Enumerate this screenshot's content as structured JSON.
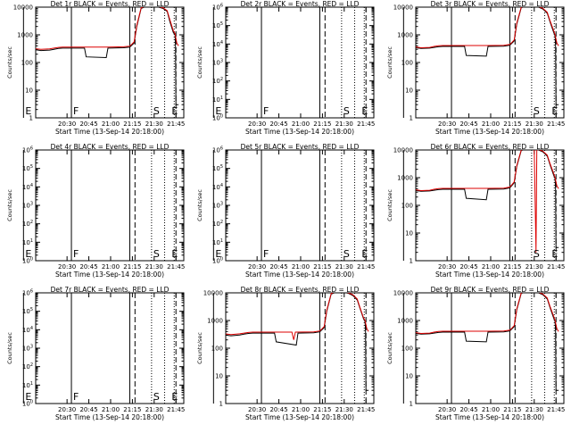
{
  "chart_data": [
    {
      "type": "line",
      "title": "Det 1r BLACK = Events, RED = LLD",
      "xlabel": "Start Time (13-Sep-14 20:18:00)",
      "ylabel": "Counts/sec",
      "scale": "log",
      "ylim": [
        1,
        10000
      ],
      "yticks": [
        "1",
        "10",
        "100",
        "1000",
        "10000"
      ],
      "xticks": [
        "20:30",
        "20:45",
        "21:00",
        "21:15",
        "21:30",
        "21:45"
      ],
      "letters": [
        {
          "t": "E",
          "x": 20.0
        },
        {
          "t": "F",
          "x": 20.55
        },
        {
          "t": "S",
          "x": 21.47
        },
        {
          "t": "E",
          "x": 21.68
        }
      ],
      "series": [
        {
          "color": "#000000",
          "x": [
            20.0,
            20.1,
            20.2,
            20.3,
            20.35,
            20.4,
            20.45,
            20.55,
            20.7,
            20.72,
            20.95,
            20.97,
            21.15,
            21.22,
            21.27,
            21.3,
            21.35,
            21.42,
            21.45,
            21.5,
            21.55,
            21.6,
            21.65,
            21.68,
            21.72,
            21.74,
            21.745,
            21.75,
            21.76,
            21.78
          ],
          "y": [
            310,
            300,
            270,
            280,
            300,
            320,
            330,
            330,
            330,
            160,
            150,
            330,
            340,
            360,
            500,
            2000,
            9000,
            11000,
            11000,
            11000,
            10000,
            9000,
            7000,
            3000,
            1200,
            1000,
            400,
            3,
            3,
            3
          ]
        },
        {
          "color": "#dd0000",
          "x": [
            20.0,
            20.1,
            20.2,
            20.3,
            20.35,
            20.4,
            20.45,
            20.55,
            20.7,
            20.95,
            21.15,
            21.22,
            21.27,
            21.3,
            21.35,
            21.42,
            21.45,
            21.5,
            21.55,
            21.6,
            21.65,
            21.68,
            21.72,
            21.74,
            21.76,
            21.78
          ],
          "y": [
            330,
            320,
            300,
            310,
            330,
            350,
            360,
            360,
            360,
            360,
            370,
            390,
            550,
            2200,
            9500,
            11500,
            11500,
            11500,
            10500,
            9500,
            7500,
            3500,
            1400,
            1100,
            500,
            400
          ]
        }
      ]
    },
    {
      "type": "line",
      "title": "Det 2r BLACK = Events, RED = LLD",
      "xlabel": "Start Time (13-Sep-14 20:18:00)",
      "ylabel": "Counts/sec",
      "scale": "log",
      "ylim": [
        1,
        1000000
      ],
      "yticks": [
        "10^0",
        "10^1",
        "10^2",
        "10^3",
        "10^4",
        "10^5",
        "10^6"
      ],
      "xticks": [
        "20:30",
        "20:45",
        "21:00",
        "21:15",
        "21:30",
        "21:45"
      ],
      "letters": [
        {
          "t": "E",
          "x": 20.0
        },
        {
          "t": "F",
          "x": 20.55
        },
        {
          "t": "S",
          "x": 21.47
        },
        {
          "t": "E",
          "x": 21.68
        }
      ],
      "series": []
    },
    {
      "type": "line",
      "title": "Det 3r BLACK = Events, RED = LLD",
      "xlabel": "Start Time (13-Sep-14 20:18:00)",
      "ylabel": "Counts/sec",
      "scale": "log",
      "ylim": [
        1,
        10000
      ],
      "yticks": [
        "1",
        "10",
        "100",
        "1000",
        "10000"
      ],
      "xticks": [
        "20:30",
        "20:45",
        "21:00",
        "21:15",
        "21:30",
        "21:45"
      ],
      "letters": [
        {
          "t": "S",
          "x": 21.47
        },
        {
          "t": "E",
          "x": 21.68
        }
      ],
      "series": [
        {
          "color": "#000000",
          "x": [
            20.0,
            20.1,
            20.2,
            20.3,
            20.35,
            20.4,
            20.45,
            20.55,
            20.7,
            20.72,
            20.95,
            20.97,
            21.15,
            21.22,
            21.27,
            21.3,
            21.35,
            21.42,
            21.45,
            21.5,
            21.55,
            21.6,
            21.65,
            21.68,
            21.72,
            21.74,
            21.745,
            21.75,
            21.76,
            21.78
          ],
          "y": [
            380,
            360,
            320,
            330,
            350,
            370,
            380,
            380,
            380,
            180,
            170,
            380,
            390,
            420,
            600,
            2500,
            9500,
            11500,
            11500,
            11000,
            10000,
            8500,
            6000,
            3000,
            1300,
            900,
            400,
            3,
            3,
            3
          ]
        },
        {
          "color": "#dd0000",
          "x": [
            20.0,
            20.1,
            20.2,
            20.3,
            20.35,
            20.4,
            20.45,
            20.55,
            20.7,
            20.95,
            21.15,
            21.22,
            21.27,
            21.3,
            21.35,
            21.42,
            21.45,
            21.5,
            21.55,
            21.6,
            21.65,
            21.68,
            21.72,
            21.74,
            21.76,
            21.78
          ],
          "y": [
            400,
            380,
            340,
            350,
            380,
            400,
            410,
            410,
            410,
            410,
            420,
            450,
            650,
            2700,
            10000,
            12000,
            12000,
            11500,
            10500,
            9000,
            6500,
            3300,
            1500,
            1000,
            500,
            400
          ]
        }
      ]
    },
    {
      "type": "line",
      "title": "Det 4r BLACK = Events, RED = LLD",
      "xlabel": "Start Time (13-Sep-14 20:18:00)",
      "ylabel": "Counts/sec",
      "scale": "log",
      "ylim": [
        1,
        1000000
      ],
      "yticks": [
        "10^0",
        "10^1",
        "10^2",
        "10^3",
        "10^4",
        "10^5",
        "10^6"
      ],
      "xticks": [
        "20:30",
        "20:45",
        "21:00",
        "21:15",
        "21:30",
        "21:45"
      ],
      "letters": [
        {
          "t": "E",
          "x": 20.0
        },
        {
          "t": "F",
          "x": 20.55
        },
        {
          "t": "S",
          "x": 21.47
        },
        {
          "t": "E",
          "x": 21.68
        }
      ],
      "series": []
    },
    {
      "type": "line",
      "title": "Det 5r BLACK = Events, RED = LLD",
      "xlabel": "Start Time (13-Sep-14 20:18:00)",
      "ylabel": "Counts/sec",
      "scale": "log",
      "ylim": [
        1,
        1000000
      ],
      "yticks": [
        "10^0",
        "10^1",
        "10^2",
        "10^3",
        "10^4",
        "10^5",
        "10^6"
      ],
      "xticks": [
        "20:30",
        "20:45",
        "21:00",
        "21:15",
        "21:30",
        "21:45"
      ],
      "letters": [
        {
          "t": "E",
          "x": 20.0
        },
        {
          "t": "F",
          "x": 20.55
        },
        {
          "t": "S",
          "x": 21.47
        },
        {
          "t": "E",
          "x": 21.68
        }
      ],
      "series": []
    },
    {
      "type": "line",
      "title": "Det 6r BLACK = Events, RED = LLD",
      "xlabel": "Start Time (13-Sep-14 20:18:00)",
      "ylabel": "Counts/sec",
      "scale": "log",
      "ylim": [
        1,
        10000
      ],
      "yticks": [
        "1",
        "10",
        "100",
        "1000",
        "10000"
      ],
      "xticks": [
        "20:30",
        "20:45",
        "21:00",
        "21:15",
        "21:30",
        "21:45"
      ],
      "letters": [
        {
          "t": "S",
          "x": 21.47
        },
        {
          "t": "E",
          "x": 21.68
        }
      ],
      "series": [
        {
          "color": "#000000",
          "x": [
            20.0,
            20.1,
            20.2,
            20.3,
            20.35,
            20.4,
            20.45,
            20.55,
            20.7,
            20.72,
            20.95,
            20.97,
            21.15,
            21.22,
            21.27,
            21.3,
            21.35,
            21.42,
            21.45,
            21.5,
            21.55,
            21.6,
            21.65,
            21.68,
            21.72,
            21.74,
            21.745,
            21.75,
            21.76,
            21.78
          ],
          "y": [
            380,
            360,
            320,
            330,
            350,
            370,
            380,
            380,
            380,
            180,
            160,
            380,
            390,
            430,
            650,
            2600,
            9500,
            11500,
            11500,
            11000,
            10000,
            8500,
            6000,
            3000,
            1300,
            900,
            400,
            3,
            3,
            3
          ]
        },
        {
          "color": "#dd0000",
          "x": [
            20.0,
            20.1,
            20.2,
            20.3,
            20.35,
            20.4,
            20.45,
            20.55,
            20.7,
            20.95,
            21.15,
            21.22,
            21.27,
            21.3,
            21.35,
            21.42,
            21.45,
            21.5,
            21.52,
            21.53,
            21.55,
            21.6,
            21.65,
            21.68,
            21.72,
            21.74,
            21.76,
            21.78
          ],
          "y": [
            400,
            380,
            340,
            350,
            380,
            400,
            410,
            410,
            410,
            410,
            420,
            460,
            700,
            2800,
            10000,
            12000,
            12000,
            11000,
            2,
            12000,
            10500,
            9000,
            6500,
            3300,
            1500,
            1000,
            500,
            400
          ]
        }
      ]
    },
    {
      "type": "line",
      "title": "Det 7r BLACK = Events, RED = LLD",
      "xlabel": "Start Time (13-Sep-14 20:18:00)",
      "ylabel": "Counts/sec",
      "scale": "log",
      "ylim": [
        1,
        1000000
      ],
      "yticks": [
        "10^0",
        "10^1",
        "10^2",
        "10^3",
        "10^4",
        "10^5",
        "10^6"
      ],
      "xticks": [
        "20:30",
        "20:45",
        "21:00",
        "21:15",
        "21:30",
        "21:45"
      ],
      "letters": [
        {
          "t": "E",
          "x": 20.0
        },
        {
          "t": "F",
          "x": 20.55
        },
        {
          "t": "S",
          "x": 21.47
        },
        {
          "t": "E",
          "x": 21.68
        }
      ],
      "series": []
    },
    {
      "type": "line",
      "title": "Det 8r BLACK = Events, RED = LLD",
      "xlabel": "Start Time (13-Sep-14 20:18:00)",
      "ylabel": "Counts/sec",
      "scale": "log",
      "ylim": [
        1,
        10000
      ],
      "yticks": [
        "1",
        "10",
        "100",
        "1000",
        "10000"
      ],
      "xticks": [
        "20:30",
        "20:45",
        "21:00",
        "21:15",
        "21:30",
        "21:45"
      ],
      "letters": [],
      "series": [
        {
          "color": "#000000",
          "x": [
            20.0,
            20.1,
            20.2,
            20.3,
            20.35,
            20.4,
            20.45,
            20.55,
            20.7,
            20.72,
            20.95,
            20.97,
            21.15,
            21.22,
            21.27,
            21.3,
            21.35,
            21.42,
            21.45,
            21.5,
            21.55,
            21.6,
            21.65,
            21.68,
            21.72,
            21.74,
            21.745,
            21.75,
            21.76,
            21.78
          ],
          "y": [
            330,
            310,
            280,
            300,
            320,
            340,
            350,
            350,
            350,
            170,
            130,
            350,
            360,
            390,
            550,
            2200,
            9000,
            11000,
            11000,
            10500,
            9500,
            8000,
            5500,
            2800,
            1200,
            900,
            400,
            3,
            3,
            3
          ]
        },
        {
          "color": "#dd0000",
          "x": [
            20.0,
            20.1,
            20.2,
            20.3,
            20.35,
            20.4,
            20.45,
            20.55,
            20.7,
            20.9,
            20.92,
            20.94,
            21.15,
            21.22,
            21.27,
            21.3,
            21.35,
            21.42,
            21.45,
            21.5,
            21.55,
            21.6,
            21.65,
            21.68,
            21.72,
            21.74,
            21.76,
            21.78
          ],
          "y": [
            360,
            340,
            310,
            330,
            350,
            370,
            380,
            380,
            380,
            380,
            200,
            380,
            390,
            420,
            600,
            2400,
            9500,
            11500,
            11500,
            11000,
            10000,
            8500,
            6000,
            3000,
            1300,
            1000,
            500,
            400
          ]
        }
      ]
    },
    {
      "type": "line",
      "title": "Det 9r BLACK = Events, RED = LLD",
      "xlabel": "Start Time (13-Sep-14 20:18:00)",
      "ylabel": "Counts/sec",
      "scale": "log",
      "ylim": [
        1,
        10000
      ],
      "yticks": [
        "1",
        "10",
        "100",
        "1000",
        "10000"
      ],
      "xticks": [
        "20:30",
        "20:45",
        "21:00",
        "21:15",
        "21:30",
        "21:45"
      ],
      "letters": [],
      "series": [
        {
          "color": "#000000",
          "x": [
            20.0,
            20.1,
            20.2,
            20.3,
            20.35,
            20.4,
            20.45,
            20.55,
            20.7,
            20.72,
            20.95,
            20.97,
            21.15,
            21.22,
            21.27,
            21.3,
            21.35,
            21.42,
            21.45,
            21.5,
            21.55,
            21.6,
            21.65,
            21.68,
            21.72,
            21.74,
            21.745,
            21.75,
            21.76,
            21.78
          ],
          "y": [
            380,
            360,
            320,
            330,
            350,
            370,
            380,
            380,
            380,
            180,
            170,
            380,
            390,
            420,
            600,
            2500,
            9500,
            11500,
            11500,
            11000,
            10000,
            8500,
            6000,
            3000,
            1300,
            900,
            400,
            3,
            3,
            3
          ]
        },
        {
          "color": "#dd0000",
          "x": [
            20.0,
            20.1,
            20.2,
            20.3,
            20.35,
            20.4,
            20.45,
            20.55,
            20.7,
            20.95,
            21.15,
            21.22,
            21.27,
            21.3,
            21.35,
            21.42,
            21.45,
            21.5,
            21.55,
            21.6,
            21.65,
            21.68,
            21.72,
            21.74,
            21.76,
            21.78
          ],
          "y": [
            400,
            380,
            340,
            350,
            380,
            400,
            410,
            410,
            410,
            410,
            420,
            450,
            650,
            2700,
            10000,
            12000,
            12000,
            11500,
            10500,
            9000,
            6500,
            3300,
            1500,
            1000,
            500,
            400
          ]
        }
      ]
    }
  ]
}
